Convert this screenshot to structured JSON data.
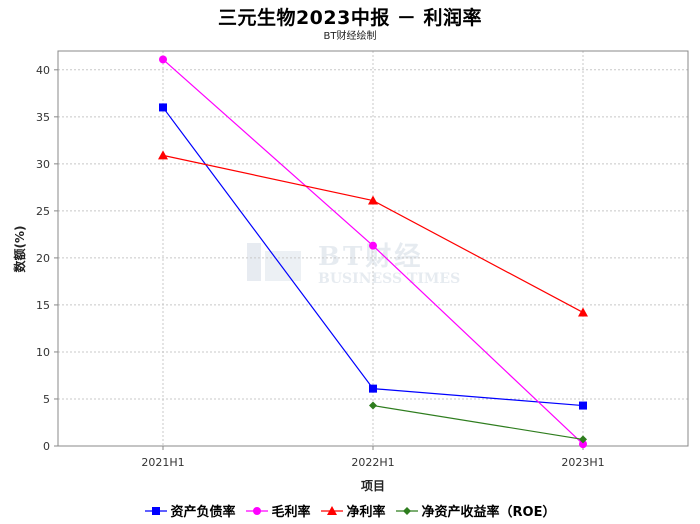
{
  "chart_data": {
    "type": "line",
    "title": "三元生物2023中报 － 利润率",
    "subtitle": "BT财经绘制",
    "xlabel": "项目",
    "ylabel": "数额(%)",
    "categories": [
      "2021H1",
      "2022H1",
      "2023H1"
    ],
    "ylim": [
      0,
      42
    ],
    "yticks": [
      0,
      5,
      10,
      15,
      20,
      25,
      30,
      35,
      40
    ],
    "grid": true,
    "legend_position": "bottom",
    "series": [
      {
        "name": "资产负债率",
        "values": [
          36.0,
          6.1,
          4.3
        ],
        "color": "#0000ff",
        "marker": "square"
      },
      {
        "name": "毛利率",
        "values": [
          41.1,
          21.3,
          0.2
        ],
        "color": "#ff00ff",
        "marker": "circle"
      },
      {
        "name": "净利率",
        "values": [
          30.9,
          26.1,
          14.2
        ],
        "color": "#ff0000",
        "marker": "triangle"
      },
      {
        "name": "净资产收益率（ROE）",
        "values": [
          null,
          4.3,
          0.7
        ],
        "color": "#2e7d1e",
        "marker": "diamond"
      }
    ]
  },
  "watermark": {
    "line1": "BT财经",
    "line2": "BUSINESS TIMES"
  }
}
